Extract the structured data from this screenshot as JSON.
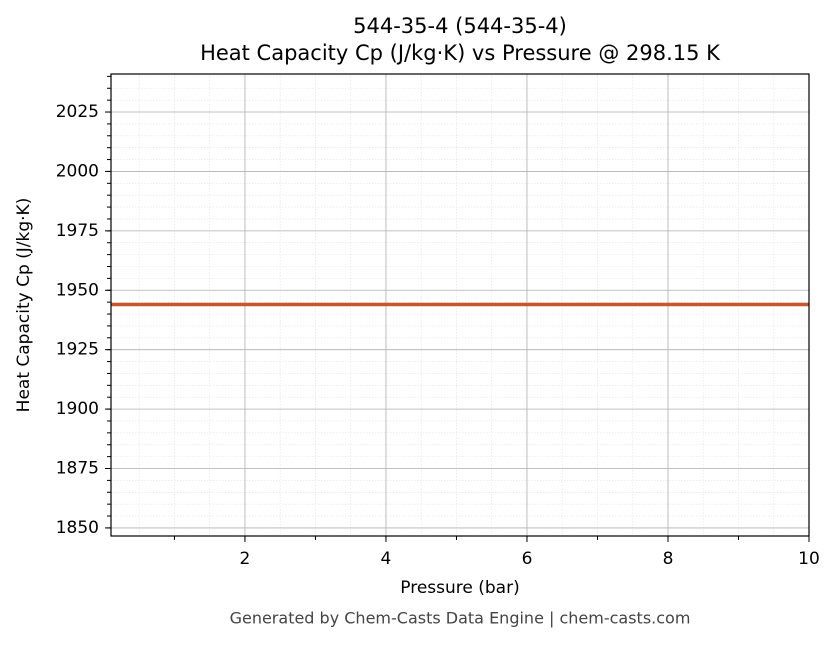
{
  "chart_data": {
    "type": "line",
    "title": "544-35-4 (544-35-4)",
    "subtitle": "Heat Capacity Cp (J/kg·K) vs Pressure @ 298.15 K",
    "x_label": "Pressure (bar)",
    "y_label": "Heat Capacity Cp (J/kg·K)",
    "annotation": "Generated by Chem-Casts Data Engine | chem-casts.com",
    "x": [
      0.1,
      10
    ],
    "series": [
      {
        "color": "#c8552d",
        "values": [
          1944,
          1944
        ]
      }
    ],
    "xlim": [
      0.1,
      10
    ],
    "xticks": [
      2,
      4,
      6,
      8,
      10
    ],
    "ylim": [
      1846.6,
      2041
    ],
    "yticks": [
      1850,
      1875,
      1900,
      1925,
      1950,
      1975,
      2000,
      2025
    ],
    "grid": true,
    "minor_grid": true
  }
}
